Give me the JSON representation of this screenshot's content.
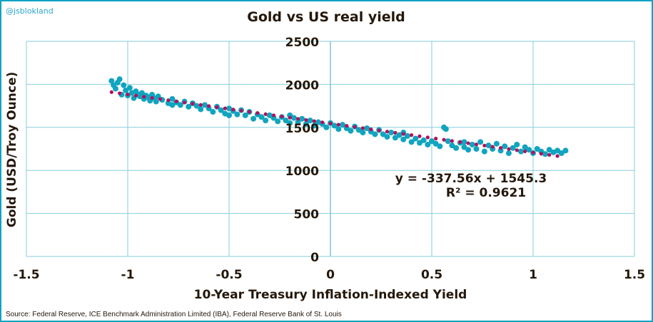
{
  "chart_data": {
    "type": "scatter",
    "title": "Gold vs US real yield",
    "xlabel": "10-Year Treasury Inflation-Indexed Yield",
    "ylabel": "Gold (USD/Troy Ounce)",
    "xlim": [
      -1.5,
      1.5
    ],
    "ylim": [
      0,
      2500
    ],
    "xticks": [
      "-1.5",
      "-1",
      "-0.5",
      "0",
      "0.5",
      "1",
      "1.5"
    ],
    "xtick_values": [
      -1.5,
      -1,
      -0.5,
      0,
      0.5,
      1,
      1.5
    ],
    "yticks": [
      "0",
      "500",
      "1000",
      "1500",
      "2000",
      "2500"
    ],
    "ytick_values": [
      0,
      500,
      1000,
      1500,
      2000,
      2500
    ],
    "grid": true,
    "colors": {
      "points": "#10a4bf",
      "trendline": "#b3105f",
      "grid": "#86cedb",
      "frame": "#0fa3c2"
    },
    "trendline": {
      "type": "linear",
      "slope": -337.56,
      "intercept": 1545.3,
      "x_range": [
        -1.08,
        1.15
      ],
      "equation": "y = -337.56x + 1545.3",
      "r2_label": "R² = 0.9621"
    },
    "points": [
      [
        -1.08,
        2040
      ],
      [
        -1.07,
        1990
      ],
      [
        -1.06,
        1950
      ],
      [
        -1.05,
        2020
      ],
      [
        -1.04,
        2060
      ],
      [
        -1.03,
        1880
      ],
      [
        -1.02,
        1990
      ],
      [
        -1.01,
        1930
      ],
      [
        -1.0,
        1870
      ],
      [
        -0.99,
        1960
      ],
      [
        -0.98,
        1900
      ],
      [
        -0.97,
        1840
      ],
      [
        -0.96,
        1920
      ],
      [
        -0.95,
        1880
      ],
      [
        -0.94,
        1860
      ],
      [
        -0.93,
        1900
      ],
      [
        -0.92,
        1830
      ],
      [
        -0.91,
        1870
      ],
      [
        -0.9,
        1850
      ],
      [
        -0.89,
        1810
      ],
      [
        -0.88,
        1880
      ],
      [
        -0.87,
        1840
      ],
      [
        -0.86,
        1800
      ],
      [
        -0.85,
        1860
      ],
      [
        -0.83,
        1820
      ],
      [
        -0.8,
        1780
      ],
      [
        -0.78,
        1830
      ],
      [
        -0.76,
        1790
      ],
      [
        -0.74,
        1760
      ],
      [
        -0.72,
        1800
      ],
      [
        -0.7,
        1740
      ],
      [
        -0.68,
        1780
      ],
      [
        -0.66,
        1750
      ],
      [
        -0.64,
        1710
      ],
      [
        -0.62,
        1760
      ],
      [
        -0.6,
        1720
      ],
      [
        -0.58,
        1680
      ],
      [
        -0.56,
        1740
      ],
      [
        -0.54,
        1700
      ],
      [
        -0.52,
        1660
      ],
      [
        -0.5,
        1720
      ],
      [
        -0.48,
        1690
      ],
      [
        -0.46,
        1650
      ],
      [
        -0.44,
        1700
      ],
      [
        -0.42,
        1640
      ],
      [
        -0.4,
        1680
      ],
      [
        -0.38,
        1600
      ],
      [
        -0.36,
        1650
      ],
      [
        -0.34,
        1620
      ],
      [
        -0.32,
        1580
      ],
      [
        -0.3,
        1640
      ],
      [
        -0.28,
        1610
      ],
      [
        -0.26,
        1570
      ],
      [
        -0.24,
        1620
      ],
      [
        -0.22,
        1580
      ],
      [
        -0.2,
        1550
      ],
      [
        -0.18,
        1610
      ],
      [
        -0.16,
        1560
      ],
      [
        -0.14,
        1600
      ],
      [
        -0.12,
        1540
      ],
      [
        -0.1,
        1580
      ],
      [
        -0.08,
        1520
      ],
      [
        -0.06,
        1560
      ],
      [
        -0.04,
        1540
      ],
      [
        -0.02,
        1500
      ],
      [
        0.0,
        1550
      ],
      [
        0.02,
        1520
      ],
      [
        0.04,
        1480
      ],
      [
        0.06,
        1530
      ],
      [
        0.08,
        1490
      ],
      [
        0.1,
        1460
      ],
      [
        0.12,
        1510
      ],
      [
        0.14,
        1470
      ],
      [
        0.16,
        1440
      ],
      [
        0.18,
        1490
      ],
      [
        0.2,
        1450
      ],
      [
        0.22,
        1420
      ],
      [
        0.24,
        1470
      ],
      [
        0.26,
        1420
      ],
      [
        0.28,
        1390
      ],
      [
        0.3,
        1440
      ],
      [
        0.32,
        1380
      ],
      [
        0.34,
        1410
      ],
      [
        0.36,
        1360
      ],
      [
        0.38,
        1400
      ],
      [
        0.4,
        1330
      ],
      [
        0.42,
        1370
      ],
      [
        0.44,
        1320
      ],
      [
        0.46,
        1350
      ],
      [
        0.48,
        1300
      ],
      [
        0.5,
        1340
      ],
      [
        0.52,
        1310
      ],
      [
        0.54,
        1280
      ],
      [
        0.56,
        1500
      ],
      [
        0.58,
        1340
      ],
      [
        0.6,
        1290
      ],
      [
        0.62,
        1260
      ],
      [
        0.64,
        1320
      ],
      [
        0.66,
        1270
      ],
      [
        0.68,
        1240
      ],
      [
        0.7,
        1300
      ],
      [
        0.72,
        1250
      ],
      [
        0.74,
        1330
      ],
      [
        0.76,
        1220
      ],
      [
        0.78,
        1290
      ],
      [
        0.8,
        1250
      ],
      [
        0.82,
        1310
      ],
      [
        0.84,
        1230
      ],
      [
        0.86,
        1280
      ],
      [
        0.88,
        1200
      ],
      [
        0.9,
        1260
      ],
      [
        0.92,
        1300
      ],
      [
        0.94,
        1220
      ],
      [
        0.96,
        1270
      ],
      [
        0.98,
        1240
      ],
      [
        1.0,
        1200
      ],
      [
        1.02,
        1250
      ],
      [
        1.04,
        1220
      ],
      [
        1.06,
        1190
      ],
      [
        1.08,
        1240
      ],
      [
        1.1,
        1210
      ],
      [
        1.12,
        1230
      ],
      [
        1.14,
        1200
      ],
      [
        1.16,
        1230
      ],
      [
        0.36,
        1440
      ],
      [
        0.57,
        1480
      ],
      [
        -0.78,
        1760
      ],
      [
        -0.5,
        1640
      ],
      [
        -0.2,
        1640
      ],
      [
        0.66,
        1330
      ]
    ]
  },
  "header": {
    "handle": "@jsblokland"
  },
  "footer": {
    "source": "Source: Federal Reserve, ICE Benchmark Administration Limited (IBA), Federal Reserve Bank of St. Louis"
  }
}
